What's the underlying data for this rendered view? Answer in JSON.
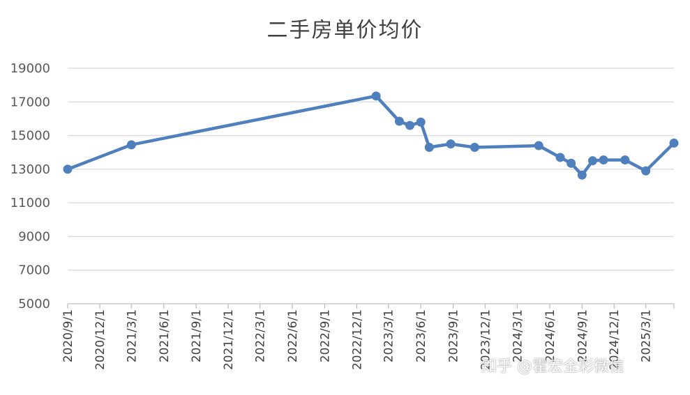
{
  "chart_data": {
    "type": "line",
    "title": "二手房单价均价",
    "xlabel": "",
    "ylabel": "",
    "ylim": [
      5000,
      19000
    ],
    "y_ticks": [
      5000,
      7000,
      9000,
      11000,
      13000,
      15000,
      17000,
      19000
    ],
    "x_range": [
      "2020-09-01",
      "2025-05-20"
    ],
    "x_tick_labels": [
      "2020/9/1",
      "2020/12/1",
      "2021/3/1",
      "2021/6/1",
      "2021/9/1",
      "2021/12/1",
      "2022/3/1",
      "2022/6/1",
      "2022/9/1",
      "2022/12/1",
      "2023/3/1",
      "2023/6/1",
      "2023/9/1",
      "2023/12/1",
      "2024/3/1",
      "2024/6/1",
      "2024/9/1",
      "2024/12/1",
      "2025/3/1"
    ],
    "x_tick_dates": [
      "2020-09-01",
      "2020-12-01",
      "2021-03-01",
      "2021-06-01",
      "2021-09-01",
      "2021-12-01",
      "2022-03-01",
      "2022-06-01",
      "2022-09-01",
      "2022-12-01",
      "2023-03-01",
      "2023-06-01",
      "2023-09-01",
      "2023-12-01",
      "2024-03-01",
      "2024-06-01",
      "2024-09-01",
      "2024-12-01",
      "2025-03-01"
    ],
    "grid": true,
    "legend": "none",
    "series": [
      {
        "color": "#4f7fbd",
        "points": [
          {
            "x": "2020-09-01",
            "y": 13000
          },
          {
            "x": "2021-03-01",
            "y": 14450
          },
          {
            "x": "2023-01-25",
            "y": 17350
          },
          {
            "x": "2023-04-01",
            "y": 15850
          },
          {
            "x": "2023-05-01",
            "y": 15600
          },
          {
            "x": "2023-06-01",
            "y": 15800
          },
          {
            "x": "2023-06-25",
            "y": 14300
          },
          {
            "x": "2023-08-25",
            "y": 14500
          },
          {
            "x": "2023-11-01",
            "y": 14300
          },
          {
            "x": "2024-05-01",
            "y": 14400
          },
          {
            "x": "2024-07-01",
            "y": 13700
          },
          {
            "x": "2024-08-01",
            "y": 13350
          },
          {
            "x": "2024-09-01",
            "y": 12650
          },
          {
            "x": "2024-10-01",
            "y": 13500
          },
          {
            "x": "2024-11-01",
            "y": 13550
          },
          {
            "x": "2025-01-01",
            "y": 13550
          },
          {
            "x": "2025-03-01",
            "y": 12900
          },
          {
            "x": "2025-05-20",
            "y": 14550
          }
        ]
      }
    ]
  },
  "watermark": "知乎 @霍宏全彩微信"
}
